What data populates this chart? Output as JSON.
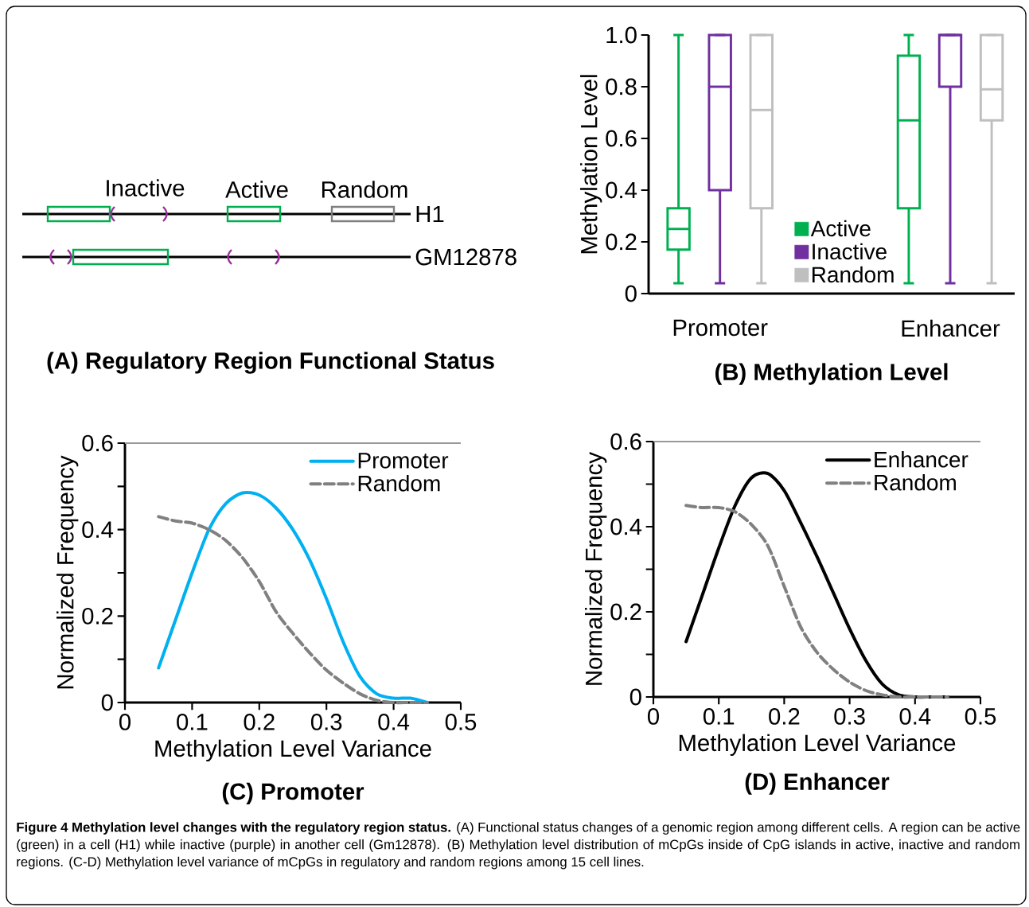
{
  "chart_data": [
    {
      "type": "other",
      "title": "(A) Regulatory Region Functional Status",
      "annotations": [
        "Inactive",
        "Active",
        "Random",
        "H1",
        "GM12878"
      ]
    },
    {
      "type": "box",
      "title": "(B) Methylation Level",
      "ylabel": "Methylation Level",
      "categories": [
        "Promoter",
        "Enhancer"
      ],
      "series": [
        {
          "name": "Active",
          "color": "#00b050",
          "boxes": [
            {
              "low": 0.04,
              "q1": 0.17,
              "median": 0.25,
              "q3": 0.33,
              "high": 1.0
            },
            {
              "low": 0.04,
              "q1": 0.33,
              "median": 0.67,
              "q3": 0.92,
              "high": 1.0
            }
          ]
        },
        {
          "name": "Inactive",
          "color": "#7030a0",
          "boxes": [
            {
              "low": 0.04,
              "q1": 0.4,
              "median": 0.8,
              "q3": 1.0,
              "high": 1.0
            },
            {
              "low": 0.04,
              "q1": 0.8,
              "median": 1.0,
              "q3": 1.0,
              "high": 1.0
            }
          ]
        },
        {
          "name": "Random",
          "color": "#bfbfbf",
          "boxes": [
            {
              "low": 0.04,
              "q1": 0.33,
              "median": 0.71,
              "q3": 1.0,
              "high": 1.0
            },
            {
              "low": 0.04,
              "q1": 0.67,
              "median": 0.79,
              "q3": 1.0,
              "high": 1.0
            }
          ]
        }
      ],
      "ylim": [
        0,
        1
      ],
      "yticks": [
        0,
        0.2,
        0.4,
        0.6,
        0.8,
        {
          "value": 1,
          "label": "1.0"
        }
      ],
      "legend": "bottom"
    },
    {
      "type": "line",
      "title": "(C) Promoter",
      "xlabel": "Methylation Level Variance",
      "ylabel": "Normalized Frequency",
      "x": [
        0.05,
        0.075,
        0.1,
        0.125,
        0.15,
        0.175,
        0.2,
        0.225,
        0.25,
        0.275,
        0.3,
        0.325,
        0.35,
        0.375,
        0.4,
        0.425,
        0.45
      ],
      "series": [
        {
          "name": "Promoter",
          "color": "#00b0f0",
          "line_style": "solid",
          "values": [
            0.08,
            0.19,
            0.3,
            0.4,
            0.46,
            0.485,
            0.48,
            0.45,
            0.4,
            0.33,
            0.24,
            0.14,
            0.06,
            0.02,
            0.01,
            0.01,
            0.0
          ]
        },
        {
          "name": "Random",
          "color": "#808080",
          "line_style": "dashed",
          "values": [
            0.43,
            0.42,
            0.415,
            0.4,
            0.375,
            0.335,
            0.28,
            0.21,
            0.16,
            0.115,
            0.075,
            0.045,
            0.02,
            0.005,
            0.0,
            0.0,
            0.0
          ]
        }
      ],
      "xlim": [
        0,
        0.5
      ],
      "xticks": [
        0,
        0.1,
        0.2,
        0.3,
        0.4,
        0.5
      ],
      "ylim": [
        0,
        0.6
      ],
      "yticks": [
        0,
        {
          "value": 0.1,
          "label": null
        },
        0.2,
        {
          "value": 0.3,
          "label": null
        },
        0.4,
        {
          "value": 0.5,
          "label": null
        },
        0.6
      ],
      "ref_lines": [
        {
          "axis": "y",
          "value": 0.6,
          "color": "#999999"
        }
      ],
      "legend": "top right"
    },
    {
      "type": "line",
      "title": "(D) Enhancer",
      "xlabel": "Methylation Level Variance",
      "ylabel": "Normalized Frequency",
      "x": [
        0.05,
        0.075,
        0.1,
        0.125,
        0.15,
        0.175,
        0.2,
        0.225,
        0.25,
        0.275,
        0.3,
        0.325,
        0.35,
        0.375,
        0.4,
        0.425,
        0.45
      ],
      "series": [
        {
          "name": "Enhancer",
          "color": "#000000",
          "line_style": "solid",
          "values": [
            0.13,
            0.24,
            0.35,
            0.45,
            0.515,
            0.525,
            0.485,
            0.41,
            0.33,
            0.245,
            0.16,
            0.085,
            0.03,
            0.005,
            0.0,
            0.0,
            0.0
          ]
        },
        {
          "name": "Random",
          "color": "#808080",
          "line_style": "dashed",
          "values": [
            0.45,
            0.445,
            0.445,
            0.435,
            0.405,
            0.355,
            0.26,
            0.165,
            0.105,
            0.065,
            0.035,
            0.015,
            0.005,
            0.0,
            0.0,
            0.0,
            0.0
          ]
        }
      ],
      "xlim": [
        0,
        0.5
      ],
      "xticks": [
        0,
        0.1,
        0.2,
        0.3,
        0.4,
        0.5
      ],
      "ylim": [
        0,
        0.6
      ],
      "yticks": [
        0,
        {
          "value": 0.1,
          "label": null
        },
        0.2,
        {
          "value": 0.3,
          "label": null
        },
        0.4,
        {
          "value": 0.5,
          "label": null
        },
        0.6
      ],
      "ref_lines": [
        {
          "axis": "y",
          "value": 0.6,
          "color": "#999999"
        }
      ],
      "legend": "top right"
    },
    {
      "type": "other",
      "annotations": [
        "**Figure 4 Methylation level changes with the regulatory region status.** (A) Functional status changes of a genomic region among different cells. A region can be active (green) in a cell (H1) while inactive (purple) in another cell (Gm12878). (B) Methylation level distribution of mCpGs inside of CpG islands in active, inactive and random regions. (C-D) Methylation level variance of mCpGs in regulatory and random regions among 15 cell lines."
      ]
    }
  ]
}
